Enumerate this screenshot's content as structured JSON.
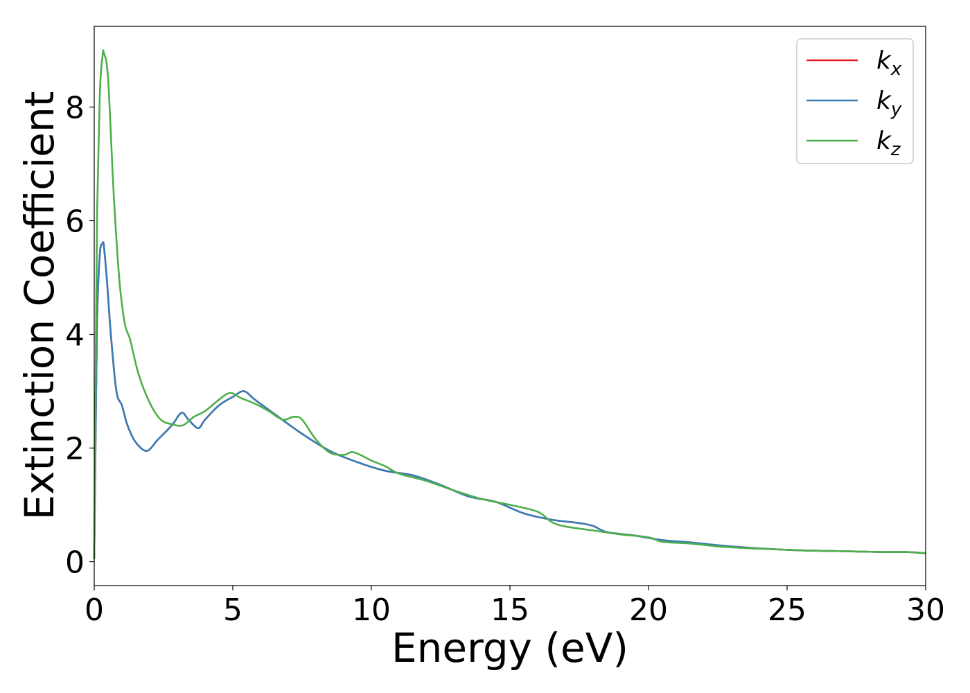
{
  "chart_data": {
    "type": "line",
    "xlabel": "Energy (eV)",
    "ylabel": "Extinction Coefficient",
    "xlim": [
      0,
      30
    ],
    "ylim": [
      -0.42,
      9.42
    ],
    "xticks": [
      "0",
      "5",
      "10",
      "15",
      "20",
      "25",
      "30"
    ],
    "yticks": [
      "0",
      "2",
      "4",
      "6",
      "8"
    ],
    "grid": false,
    "legend_position": "top-right",
    "series": [
      {
        "name": "k",
        "subscript": "x",
        "color": "#e41a1c",
        "x": [
          0,
          0.05,
          0.1,
          0.2,
          0.3,
          0.35,
          0.45,
          0.6,
          0.8,
          1.0,
          1.2,
          1.5,
          1.9,
          2.3,
          2.8,
          3.15,
          3.4,
          3.75,
          4.0,
          4.5,
          5.0,
          5.4,
          5.8,
          6.5,
          7.5,
          8.5,
          9.5,
          10.5,
          11.5,
          12.5,
          13.5,
          14.5,
          15.5,
          16.5,
          17.5,
          18.0,
          18.5,
          19.5,
          20.5,
          21.5,
          22.5,
          23.5,
          24.5,
          25.5,
          26.5,
          27.5,
          28.5,
          29.3,
          30
        ],
        "y": [
          0.05,
          2.2,
          4.2,
          5.4,
          5.6,
          5.55,
          5.0,
          4.0,
          3.0,
          2.75,
          2.4,
          2.1,
          1.95,
          2.15,
          2.4,
          2.62,
          2.5,
          2.35,
          2.5,
          2.75,
          2.9,
          3.0,
          2.85,
          2.6,
          2.25,
          1.95,
          1.75,
          1.6,
          1.52,
          1.35,
          1.15,
          1.05,
          0.85,
          0.74,
          0.68,
          0.63,
          0.52,
          0.46,
          0.38,
          0.34,
          0.29,
          0.25,
          0.22,
          0.2,
          0.19,
          0.18,
          0.17,
          0.17,
          0.15
        ]
      },
      {
        "name": "k",
        "subscript": "y",
        "color": "#377eb8",
        "x": [
          0,
          0.05,
          0.1,
          0.2,
          0.3,
          0.35,
          0.45,
          0.6,
          0.8,
          1.0,
          1.2,
          1.5,
          1.9,
          2.3,
          2.8,
          3.15,
          3.4,
          3.75,
          4.0,
          4.5,
          5.0,
          5.4,
          5.8,
          6.5,
          7.5,
          8.5,
          9.5,
          10.5,
          11.5,
          12.5,
          13.5,
          14.5,
          15.5,
          16.5,
          17.5,
          18.0,
          18.5,
          19.5,
          20.5,
          21.5,
          22.5,
          23.5,
          24.5,
          25.5,
          26.5,
          27.5,
          28.5,
          29.3,
          30
        ],
        "y": [
          0.05,
          2.2,
          4.2,
          5.4,
          5.6,
          5.55,
          5.0,
          4.0,
          3.0,
          2.75,
          2.4,
          2.1,
          1.95,
          2.15,
          2.4,
          2.62,
          2.5,
          2.35,
          2.5,
          2.75,
          2.9,
          3.0,
          2.85,
          2.6,
          2.25,
          1.95,
          1.75,
          1.6,
          1.52,
          1.35,
          1.15,
          1.05,
          0.85,
          0.74,
          0.68,
          0.63,
          0.52,
          0.46,
          0.38,
          0.34,
          0.29,
          0.25,
          0.22,
          0.2,
          0.19,
          0.18,
          0.17,
          0.17,
          0.15
        ]
      },
      {
        "name": "k",
        "subscript": "z",
        "color": "#4daf4a",
        "x": [
          0,
          0.05,
          0.1,
          0.2,
          0.3,
          0.35,
          0.5,
          0.7,
          0.9,
          1.1,
          1.3,
          1.6,
          2.0,
          2.4,
          2.8,
          3.2,
          3.6,
          4.0,
          4.5,
          4.9,
          5.3,
          5.8,
          6.3,
          6.8,
          7.2,
          7.5,
          8.0,
          8.5,
          9.0,
          9.3,
          9.6,
          10.0,
          10.5,
          11.0,
          12.0,
          13.0,
          14.0,
          15.0,
          16.0,
          16.5,
          17.0,
          18.0,
          19.0,
          20.0,
          20.5,
          21.5,
          22.5,
          23.5,
          24.5,
          25.5,
          26.5,
          27.5,
          28.5,
          29.3,
          30
        ],
        "y": [
          0.05,
          3.2,
          6.0,
          8.2,
          8.9,
          8.95,
          8.5,
          6.5,
          5.0,
          4.2,
          3.9,
          3.3,
          2.8,
          2.5,
          2.42,
          2.4,
          2.55,
          2.65,
          2.85,
          2.97,
          2.88,
          2.78,
          2.65,
          2.5,
          2.55,
          2.5,
          2.15,
          1.92,
          1.88,
          1.93,
          1.88,
          1.78,
          1.68,
          1.55,
          1.42,
          1.25,
          1.1,
          1.0,
          0.88,
          0.7,
          0.62,
          0.55,
          0.48,
          0.43,
          0.35,
          0.32,
          0.27,
          0.24,
          0.22,
          0.2,
          0.19,
          0.18,
          0.17,
          0.17,
          0.15
        ]
      }
    ]
  }
}
